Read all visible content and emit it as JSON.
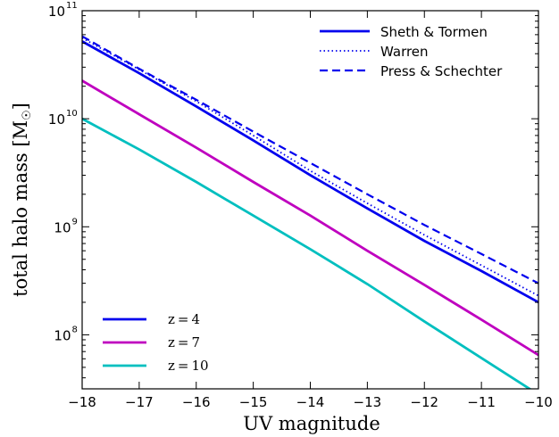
{
  "chart_data": {
    "type": "line",
    "title": "",
    "xlabel": "UV magnitude",
    "ylabel": "total halo mass  [M",
    "ylabel_unit_symbol": "☉",
    "ylabel_close": "]",
    "xlim": [
      -18,
      -10
    ],
    "ylim_log10": [
      7.5,
      11
    ],
    "yscale": "log",
    "x_ticks": [
      -18,
      -17,
      -16,
      -15,
      -14,
      -13,
      -12,
      -11,
      -10
    ],
    "x_tick_labels": [
      "−18",
      "−17",
      "−16",
      "−15",
      "−14",
      "−13",
      "−12",
      "−11",
      "−10"
    ],
    "y_tick_base": "10",
    "y_tick_exponents": [
      "8",
      "9",
      "10",
      "11"
    ],
    "grid": false,
    "legends": {
      "method_legend": {
        "placement": "top-right",
        "entries": [
          {
            "label": "Sheth & Tormen",
            "style": "solid",
            "color": "#0000ee"
          },
          {
            "label": "Warren",
            "style": "dotted",
            "color": "#0000ee"
          },
          {
            "label": "Press & Schechter",
            "style": "dashed",
            "color": "#0000ee"
          }
        ]
      },
      "redshift_legend": {
        "placement": "bottom-left",
        "entries": [
          {
            "label": "z = 4",
            "color": "#0000ee"
          },
          {
            "label": "z = 7",
            "color": "#bf00bf"
          },
          {
            "label": "z = 10",
            "color": "#00bfbf"
          }
        ]
      }
    },
    "series": [
      {
        "name": "z = 4",
        "legend_method": "Sheth & Tormen",
        "style": "solid",
        "color": "#0000ee",
        "x": [
          -18,
          -17,
          -16,
          -15,
          -14,
          -13,
          -12,
          -11,
          -10
        ],
        "y": [
          52000000000.0,
          26400000000.0,
          13000000000.0,
          6300000000.0,
          3000000000.0,
          1480000000.0,
          740000000.0,
          390000000.0,
          200000000.0
        ]
      },
      {
        "name": "z = 4",
        "legend_method": "Warren",
        "style": "dotted",
        "color": "#0000ee",
        "x": [
          -18,
          -17,
          -16,
          -15,
          -14,
          -13,
          -12,
          -11,
          -10
        ],
        "y": [
          56000000000.0,
          28500000000.0,
          14500000000.0,
          7000000000.0,
          3300000000.0,
          1650000000.0,
          840000000.0,
          440000000.0,
          230000000.0
        ]
      },
      {
        "name": "z = 4",
        "legend_method": "Press & Schechter",
        "style": "dashed",
        "color": "#0000ee",
        "x": [
          -18,
          -17,
          -16,
          -15,
          -14,
          -13,
          -12,
          -11,
          -10
        ],
        "y": [
          58000000000.0,
          29000000000.0,
          15000000000.0,
          7600000000.0,
          3900000000.0,
          2000000000.0,
          1040000000.0,
          560000000.0,
          300000000.0
        ]
      },
      {
        "name": "z = 7",
        "style": "solid",
        "color": "#bf00bf",
        "x": [
          -18,
          -17,
          -16,
          -15,
          -14,
          -13,
          -12,
          -11,
          -10
        ],
        "y": [
          22500000000.0,
          11000000000.0,
          5400000000.0,
          2600000000.0,
          1270000000.0,
          600000000.0,
          290000000.0,
          138000000.0,
          65000000.0
        ]
      },
      {
        "name": "z = 10",
        "style": "solid",
        "color": "#00bfbf",
        "x": [
          -18,
          -17,
          -16,
          -15,
          -14,
          -13,
          -12,
          -11,
          -10
        ],
        "y": [
          10000000000.0,
          5200000000.0,
          2600000000.0,
          1270000000.0,
          620000000.0,
          295000000.0,
          133000000.0,
          61000000.0,
          28000000.0
        ]
      }
    ]
  }
}
